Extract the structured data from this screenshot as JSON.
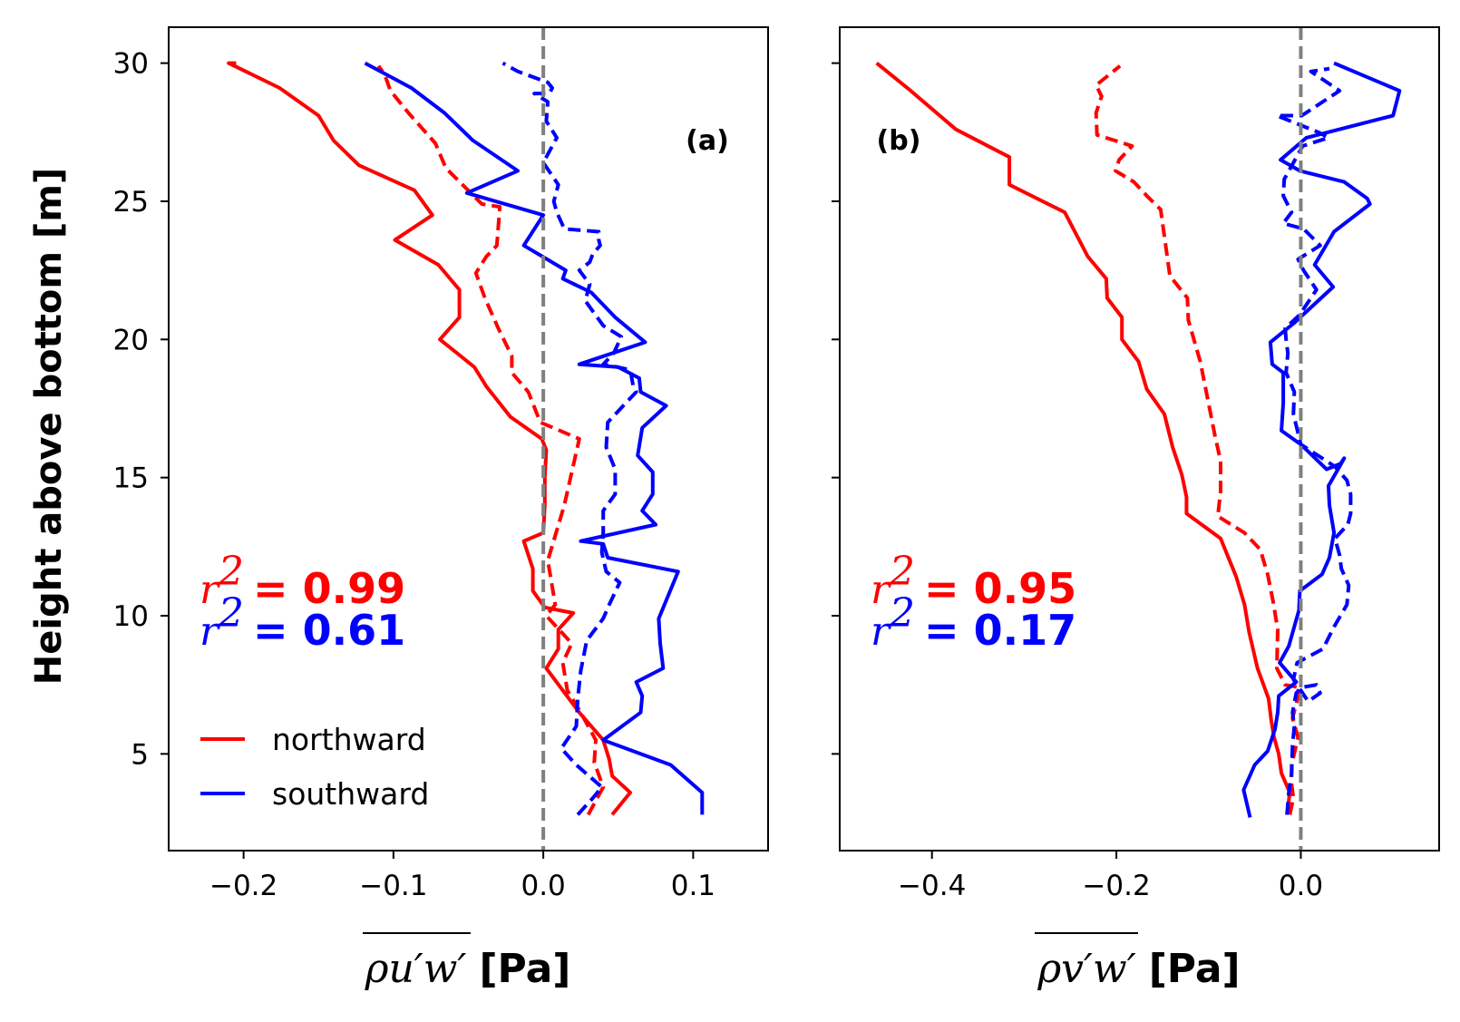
{
  "colors": {
    "northward": "#ff0000",
    "southward": "#0000ff",
    "zero_line": "#808080",
    "frame": "#000000"
  },
  "ylabel": "Height above bottom [m]",
  "legend": {
    "placement": "lower-left",
    "entries": [
      "northward",
      "southward"
    ]
  },
  "chart_data": [
    {
      "type": "line",
      "panel": "(a)",
      "xlabel_symbol": "ρu′w′",
      "xlabel_unit": "[Pa]",
      "xlim": [
        -0.25,
        0.15
      ],
      "ylim": [
        1.5,
        31.3
      ],
      "xticks": [
        -0.2,
        -0.1,
        0.0,
        0.1
      ],
      "xtick_labels": [
        "−0.2",
        "−0.1",
        "0.0",
        "0.1"
      ],
      "yticks": [
        5,
        10,
        15,
        20,
        25,
        30
      ],
      "ytick_labels": [
        "5",
        "10",
        "15",
        "20",
        "25",
        "30"
      ],
      "zero_line": 0,
      "stats": [
        {
          "symbol": "r",
          "exponent": "2",
          "text": "= 0.99",
          "color": "#ff0000"
        },
        {
          "symbol": "r",
          "exponent": "2",
          "text": "= 0.61",
          "color": "#0000ff"
        }
      ],
      "series": [
        {
          "name": "northward",
          "color": "#ff0000",
          "dash": "solid",
          "x": [
            0.046,
            0.058,
            0.046,
            0.044,
            0.04,
            0.024,
            0.002,
            0.01,
            0.01,
            0.02,
            0.001,
            -0.007,
            -0.007,
            -0.013,
            0.0,
            0.001,
            0.001,
            0.002,
            -0.001,
            -0.022,
            -0.038,
            -0.046,
            -0.069,
            -0.056,
            -0.056,
            -0.07,
            -0.099,
            -0.074,
            -0.086,
            -0.123,
            -0.14,
            -0.15,
            -0.176,
            -0.21,
            -0.205
          ],
          "y": [
            2.8,
            3.6,
            4.2,
            4.8,
            5.5,
            6.5,
            8.1,
            8.8,
            9.5,
            10.1,
            10.3,
            10.9,
            11.7,
            12.7,
            13.0,
            14.0,
            15.0,
            16.0,
            16.4,
            17.2,
            18.3,
            19.0,
            20.0,
            20.8,
            21.8,
            22.7,
            23.6,
            24.5,
            25.4,
            26.3,
            27.2,
            28.1,
            29.1,
            30.0,
            30.0
          ],
          "comment": ""
        },
        {
          "name": "",
          "color": "#ff0000",
          "dash": "dashed",
          "x": [
            0.03,
            0.04,
            0.034,
            0.035,
            0.025,
            0.016,
            0.013,
            0.019,
            0.002,
            0.008,
            0.003,
            0.014,
            0.024,
            -0.002,
            -0.01,
            -0.021,
            -0.021,
            -0.03,
            -0.039,
            -0.045,
            -0.038,
            -0.031,
            -0.029,
            -0.041,
            -0.065,
            -0.072,
            -0.09,
            -0.102,
            -0.106,
            -0.106,
            -0.11
          ],
          "y": [
            2.8,
            3.8,
            4.7,
            5.5,
            6.5,
            7.3,
            8.3,
            9.0,
            10.0,
            10.4,
            12.0,
            14.0,
            16.4,
            17.0,
            18.1,
            18.8,
            19.4,
            20.4,
            21.5,
            22.4,
            23.0,
            23.4,
            24.8,
            24.9,
            26.2,
            27.1,
            28.2,
            29.0,
            29.6,
            29.6,
            29.9
          ],
          "comment": ""
        },
        {
          "name": "southward",
          "color": "#0000ff",
          "dash": "solid",
          "x": [
            0.106,
            0.106,
            0.085,
            0.04,
            0.065,
            0.066,
            0.062,
            0.08,
            0.078,
            0.077,
            0.09,
            0.043,
            0.04,
            0.025,
            0.075,
            0.066,
            0.073,
            0.073,
            0.063,
            0.066,
            0.082,
            0.065,
            0.064,
            0.05,
            0.024,
            0.068,
            0.048,
            0.032,
            0.013,
            0.015,
            -0.013,
            0.0,
            -0.051,
            -0.017,
            -0.047,
            -0.066,
            -0.088,
            -0.119
          ],
          "y": [
            2.8,
            3.6,
            4.6,
            5.5,
            6.5,
            7.1,
            7.6,
            8.1,
            9.0,
            9.9,
            11.6,
            12.1,
            12.6,
            12.7,
            13.3,
            13.8,
            14.4,
            15.2,
            15.8,
            16.8,
            17.6,
            18.1,
            18.6,
            19.0,
            19.1,
            19.9,
            20.8,
            21.7,
            22.2,
            22.5,
            23.4,
            24.5,
            25.3,
            26.1,
            27.2,
            28.2,
            29.1,
            30.0
          ],
          "comment": ""
        },
        {
          "name": "",
          "color": "#0000ff",
          "dash": "dashed",
          "x": [
            0.023,
            0.033,
            0.039,
            0.022,
            0.012,
            0.022,
            0.023,
            0.025,
            0.029,
            0.04,
            0.044,
            0.051,
            0.042,
            0.039,
            0.04,
            0.04,
            0.048,
            0.048,
            0.042,
            0.043,
            0.062,
            0.06,
            0.058,
            0.04,
            0.047,
            0.052,
            0.04,
            0.028,
            0.031,
            0.024,
            0.031,
            0.033,
            0.038,
            0.037,
            0.037,
            0.014,
            0.009,
            0.007,
            0.01,
            0.005,
            0.0,
            0.009,
            0.002,
            0.003,
            -0.006,
            0.004,
            0.006,
            0.003,
            -0.002,
            -0.017,
            -0.027
          ],
          "y": [
            2.8,
            3.4,
            3.8,
            4.6,
            5.2,
            6.0,
            7.0,
            8.0,
            9.1,
            9.9,
            10.4,
            11.2,
            11.6,
            12.3,
            13.0,
            13.8,
            14.4,
            15.3,
            16.1,
            17.0,
            18.1,
            18.3,
            18.9,
            19.1,
            19.5,
            20.1,
            20.5,
            21.4,
            22.0,
            22.5,
            22.8,
            23.1,
            23.4,
            23.6,
            23.9,
            24.0,
            24.6,
            25.0,
            25.6,
            26.0,
            26.4,
            27.3,
            27.9,
            28.6,
            28.9,
            28.9,
            29.1,
            29.3,
            29.4,
            29.7,
            30.0
          ],
          "comment": ""
        }
      ]
    },
    {
      "type": "line",
      "panel": "(b)",
      "xlabel_symbol": "ρv′w′",
      "xlabel_unit": "[Pa]",
      "xlim": [
        -0.5,
        0.15
      ],
      "ylim": [
        1.5,
        31.3
      ],
      "xticks": [
        -0.4,
        -0.2,
        0.0
      ],
      "xtick_labels": [
        "−0.4",
        "−0.2",
        "0.0"
      ],
      "yticks": [
        5,
        10,
        15,
        20,
        25,
        30
      ],
      "ytick_labels": [
        "",
        "",
        "",
        "",
        "",
        ""
      ],
      "zero_line": 0,
      "stats": [
        {
          "symbol": "r",
          "exponent": "2",
          "text": "= 0.95",
          "color": "#ff0000"
        },
        {
          "symbol": "r",
          "exponent": "2",
          "text": "= 0.17",
          "color": "#0000ff"
        }
      ],
      "series": [
        {
          "name": "northward",
          "color": "#ff0000",
          "dash": "solid",
          "x": [
            -0.015,
            -0.012,
            -0.021,
            -0.024,
            -0.029,
            -0.032,
            -0.035,
            -0.047,
            -0.056,
            -0.061,
            -0.07,
            -0.087,
            -0.124,
            -0.124,
            -0.129,
            -0.139,
            -0.148,
            -0.167,
            -0.176,
            -0.194,
            -0.194,
            -0.21,
            -0.211,
            -0.231,
            -0.256,
            -0.316,
            -0.316,
            -0.374,
            -0.423,
            -0.46
          ],
          "y": [
            2.8,
            3.6,
            4.3,
            5.0,
            5.6,
            6.2,
            7.0,
            8.1,
            9.4,
            10.4,
            11.4,
            12.8,
            13.7,
            14.3,
            15.1,
            16.1,
            17.3,
            18.2,
            19.2,
            20.0,
            20.8,
            21.5,
            22.2,
            23.0,
            24.6,
            25.6,
            26.6,
            27.6,
            29.0,
            30.0
          ],
          "comment": ""
        },
        {
          "name": "",
          "color": "#ff0000",
          "dash": "dashed",
          "x": [
            -0.012,
            -0.008,
            -0.01,
            -0.01,
            -0.003,
            -0.009,
            -0.005,
            -0.001,
            -0.017,
            -0.026,
            -0.025,
            -0.03,
            -0.036,
            -0.044,
            -0.061,
            -0.09,
            -0.087,
            -0.087,
            -0.093,
            -0.109,
            -0.122,
            -0.123,
            -0.142,
            -0.152,
            -0.167,
            -0.181,
            -0.201,
            -0.197,
            -0.183,
            -0.221,
            -0.222,
            -0.216,
            -0.222,
            -0.196
          ],
          "y": [
            2.8,
            3.4,
            3.9,
            4.6,
            5.6,
            6.3,
            6.8,
            7.4,
            7.5,
            8.1,
            9.5,
            10.5,
            11.5,
            12.4,
            13.0,
            13.6,
            14.5,
            15.6,
            16.5,
            19.2,
            20.7,
            21.5,
            22.3,
            24.7,
            25.2,
            25.7,
            26.1,
            26.5,
            27.0,
            27.4,
            28.2,
            28.8,
            29.2,
            29.9
          ],
          "comment": ""
        },
        {
          "name": "southward",
          "color": "#0000ff",
          "dash": "solid",
          "x": [
            -0.055,
            -0.062,
            -0.05,
            -0.036,
            -0.028,
            -0.025,
            -0.024,
            -0.005,
            -0.023,
            -0.013,
            -0.002,
            -0.001,
            0.023,
            0.031,
            0.036,
            0.031,
            0.03,
            0.042,
            0.047,
            0.043,
            0.028,
            0.0,
            -0.021,
            -0.019,
            -0.019,
            -0.031,
            -0.033,
            -0.007,
            0.035,
            0.015,
            0.036,
            0.075,
            0.072,
            0.047,
            -0.001,
            -0.022,
            0.006,
            0.1,
            0.107,
            0.036
          ],
          "y": [
            2.7,
            3.7,
            4.6,
            5.1,
            5.9,
            6.5,
            7.1,
            7.6,
            8.3,
            8.9,
            10.2,
            10.9,
            11.5,
            12.1,
            13.0,
            14.0,
            14.7,
            15.4,
            15.7,
            15.5,
            15.3,
            16.2,
            16.7,
            17.7,
            18.8,
            19.1,
            19.9,
            20.6,
            21.9,
            22.7,
            23.9,
            24.9,
            25.1,
            25.7,
            26.1,
            26.5,
            27.3,
            28.1,
            29.0,
            30.0
          ],
          "comment": ""
        },
        {
          "name": "",
          "color": "#0000ff",
          "dash": "dashed",
          "x": [
            -0.015,
            -0.013,
            -0.01,
            -0.009,
            -0.007,
            -0.009,
            -0.005,
            0.0,
            0.017,
            0.021,
            0.008,
            -0.008,
            -0.004,
            0.024,
            0.036,
            0.05,
            0.052,
            0.044,
            0.042,
            0.037,
            0.051,
            0.054,
            0.054,
            0.05,
            0.037,
            0.0,
            -0.008,
            -0.007,
            -0.016,
            -0.014,
            -0.016,
            -0.017,
            -0.001,
            0.017,
            0.003,
            -0.003,
            0.021,
            0.003,
            -0.019,
            -0.01,
            -0.019,
            -0.018,
            0.002,
            0.03,
            0.019,
            -0.026,
            0.001,
            0.042,
            0.011,
            0.031
          ],
          "y": [
            2.8,
            3.6,
            4.3,
            5.3,
            6.0,
            6.5,
            7.2,
            7.4,
            7.5,
            7.2,
            6.9,
            7.7,
            8.3,
            8.8,
            9.6,
            10.4,
            11.1,
            11.7,
            12.2,
            12.8,
            13.3,
            13.7,
            14.4,
            14.9,
            15.4,
            16.2,
            17.3,
            18.1,
            18.8,
            19.5,
            20.0,
            20.4,
            20.9,
            21.8,
            22.5,
            22.9,
            23.4,
            24.0,
            24.2,
            24.6,
            25.2,
            25.8,
            27.0,
            27.3,
            27.5,
            28.1,
            28.1,
            29.0,
            29.7,
            29.8
          ],
          "comment": ""
        }
      ]
    }
  ]
}
